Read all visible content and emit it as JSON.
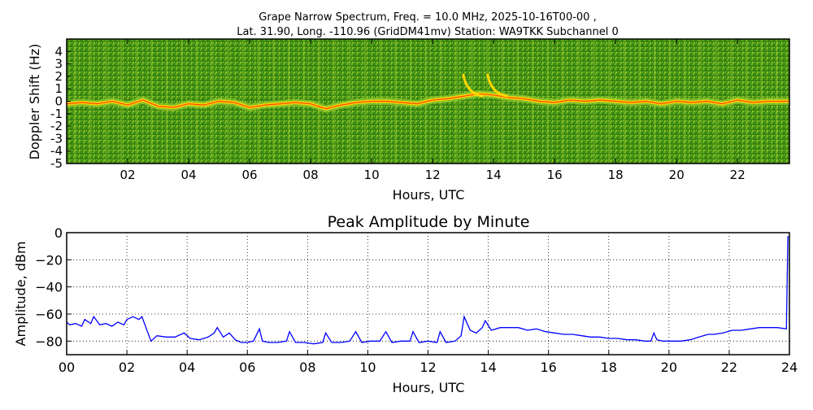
{
  "figure": {
    "title_line1": "Grape Narrow Spectrum, Freq. = 10.0 MHz, 2025-10-16T00-00 ,",
    "title_line2": "Lat.  31.90, Long. -110.96 (GridDM41mv) Station: WA9TKK Subchannel 0"
  },
  "colors": {
    "spectrogram_background": "#3a8a12",
    "spectrogram_mid": "#9acd32",
    "spectrogram_hot": "#ffd700",
    "spectrogram_peak": "#ff2000",
    "amplitude_line": "#0000ff",
    "grid": "#000000"
  },
  "chart_data": [
    {
      "type": "heatmap",
      "title": "",
      "xlabel": "Hours, UTC",
      "ylabel": "Doppler Shift (Hz)",
      "xlim": [
        0,
        23.7
      ],
      "ylim": [
        -5,
        5
      ],
      "x_ticks": [
        "02",
        "04",
        "06",
        "08",
        "10",
        "12",
        "14",
        "16",
        "18",
        "20",
        "22"
      ],
      "x_tick_values": [
        2,
        4,
        6,
        8,
        10,
        12,
        14,
        16,
        18,
        20,
        22
      ],
      "y_ticks": [
        "4",
        "3",
        "2",
        "1",
        "0",
        "-1",
        "-2",
        "-3",
        "-4",
        "-5"
      ],
      "y_tick_values": [
        4,
        3,
        2,
        1,
        0,
        -1,
        -2,
        -3,
        -4,
        -5
      ],
      "grid": false,
      "trace": {
        "hours": [
          0.0,
          0.5,
          1.0,
          1.5,
          2.0,
          2.5,
          3.0,
          3.5,
          4.0,
          4.5,
          5.0,
          5.5,
          6.0,
          6.5,
          7.0,
          7.5,
          8.0,
          8.5,
          9.0,
          9.5,
          10.0,
          10.5,
          11.0,
          11.5,
          12.0,
          12.5,
          13.0,
          13.5,
          14.0,
          14.5,
          15.0,
          15.5,
          16.0,
          16.5,
          17.0,
          17.5,
          18.0,
          18.5,
          19.0,
          19.5,
          20.0,
          20.5,
          21.0,
          21.5,
          22.0,
          22.5,
          23.0,
          23.7
        ],
        "doppler_hz": [
          -0.2,
          -0.1,
          -0.2,
          0.0,
          -0.3,
          0.1,
          -0.4,
          -0.5,
          -0.2,
          -0.3,
          0.0,
          -0.1,
          -0.5,
          -0.3,
          -0.2,
          -0.1,
          -0.2,
          -0.6,
          -0.3,
          -0.1,
          0.0,
          0.0,
          -0.1,
          -0.2,
          0.1,
          0.2,
          0.4,
          0.6,
          0.5,
          0.3,
          0.2,
          0.0,
          -0.1,
          0.1,
          0.0,
          0.1,
          0.0,
          -0.1,
          0.0,
          -0.2,
          0.0,
          -0.1,
          0.0,
          -0.2,
          0.1,
          -0.1,
          0.0,
          0.0
        ]
      },
      "arc_hours": [
        13.0,
        13.8
      ]
    },
    {
      "type": "line",
      "title": "Peak Amplitude by Minute",
      "xlabel": "Hours, UTC",
      "ylabel": "Amplitude, dBm",
      "xlim": [
        0,
        24
      ],
      "ylim": [
        -90,
        0
      ],
      "x_ticks": [
        "00",
        "02",
        "04",
        "06",
        "08",
        "10",
        "12",
        "14",
        "16",
        "18",
        "20",
        "22",
        "24"
      ],
      "x_tick_values": [
        0,
        2,
        4,
        6,
        8,
        10,
        12,
        14,
        16,
        18,
        20,
        22,
        24
      ],
      "y_ticks": [
        "0",
        "−20",
        "−40",
        "−60",
        "−80"
      ],
      "y_tick_values": [
        0,
        -20,
        -40,
        -60,
        -80
      ],
      "grid": true,
      "series": [
        {
          "x": [
            0.0,
            0.1,
            0.3,
            0.5,
            0.6,
            0.8,
            0.9,
            1.1,
            1.3,
            1.5,
            1.7,
            1.9,
            2.0,
            2.2,
            2.4,
            2.5,
            2.6,
            2.7,
            2.8,
            3.0,
            3.3,
            3.6,
            3.9,
            4.1,
            4.4,
            4.7,
            4.9,
            5.0,
            5.2,
            5.4,
            5.6,
            5.8,
            6.0,
            6.2,
            6.4,
            6.5,
            6.7,
            7.0,
            7.3,
            7.4,
            7.6,
            7.9,
            8.2,
            8.5,
            8.6,
            8.8,
            9.1,
            9.4,
            9.6,
            9.8,
            10.1,
            10.4,
            10.6,
            10.8,
            11.1,
            11.4,
            11.5,
            11.7,
            12.0,
            12.3,
            12.4,
            12.6,
            12.9,
            13.1,
            13.2,
            13.4,
            13.6,
            13.8,
            13.9,
            14.1,
            14.4,
            14.7,
            15.0,
            15.3,
            15.6,
            15.9,
            16.2,
            16.5,
            16.8,
            17.1,
            17.4,
            17.7,
            18.0,
            18.3,
            18.6,
            18.9,
            19.2,
            19.4,
            19.5,
            19.6,
            19.8,
            20.1,
            20.4,
            20.7,
            21.0,
            21.3,
            21.5,
            21.8,
            22.1,
            22.4,
            22.7,
            23.0,
            23.3,
            23.6,
            23.9,
            23.95,
            24.0
          ],
          "y": [
            -66,
            -68,
            -67,
            -69,
            -64,
            -67,
            -62,
            -68,
            -67,
            -69,
            -66,
            -68,
            -64,
            -62,
            -64,
            -62,
            -68,
            -74,
            -80,
            -76,
            -77,
            -77,
            -74,
            -78,
            -79,
            -77,
            -74,
            -70,
            -77,
            -74,
            -79,
            -81,
            -81,
            -80,
            -71,
            -80,
            -81,
            -81,
            -80,
            -73,
            -81,
            -81,
            -82,
            -81,
            -74,
            -81,
            -81,
            -80,
            -73,
            -81,
            -80,
            -80,
            -73,
            -81,
            -80,
            -80,
            -73,
            -81,
            -80,
            -81,
            -73,
            -81,
            -80,
            -76,
            -62,
            -72,
            -74,
            -70,
            -65,
            -72,
            -70,
            -70,
            -70,
            -72,
            -71,
            -73,
            -74,
            -75,
            -75,
            -76,
            -77,
            -77,
            -78,
            -78,
            -79,
            -79,
            -80,
            -80,
            -74,
            -79,
            -80,
            -80,
            -80,
            -79,
            -77,
            -75,
            -75,
            -74,
            -72,
            -72,
            -71,
            -70,
            -70,
            -70,
            -71,
            -3,
            -3
          ]
        }
      ]
    }
  ]
}
